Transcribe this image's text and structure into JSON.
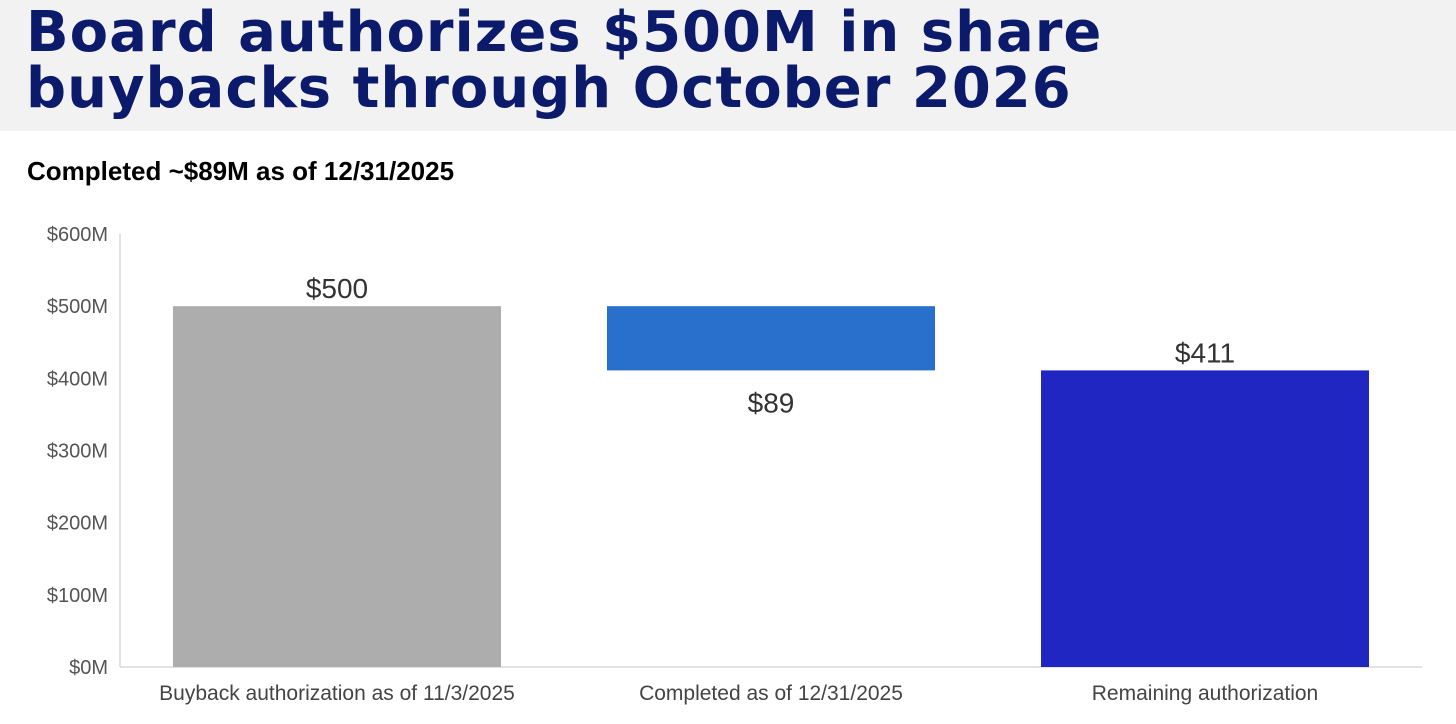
{
  "title": {
    "line1": "Board authorizes $500M in share",
    "line2": "buybacks through October 2026"
  },
  "colors": {
    "title": "#0c1a6b",
    "header_band": "#f2f2f2",
    "axis": "#d9d9d9"
  },
  "chart_data": {
    "type": "bar",
    "subtype": "waterfall",
    "title": "Completed ~$89M as of 12/31/2025",
    "xlabel": "",
    "ylabel": "",
    "ylim": [
      0,
      600
    ],
    "y_ticks": [
      0,
      100,
      200,
      300,
      400,
      500,
      600
    ],
    "y_tick_labels": [
      "$0M",
      "$100M",
      "$200M",
      "$300M",
      "$400M",
      "$500M",
      "$600M"
    ],
    "grid": false,
    "legend": "none",
    "categories": [
      "Buyback authorization as of 11/3/2025",
      "Completed as of 12/31/2025",
      "Remaining authorization"
    ],
    "bars": [
      {
        "base": 0,
        "top": 500,
        "value": 500,
        "label": "$500",
        "label_position": "above",
        "color": "#adadad"
      },
      {
        "base": 411,
        "top": 500,
        "value": 89,
        "label": "$89",
        "label_position": "below",
        "color": "#2970cc"
      },
      {
        "base": 0,
        "top": 411,
        "value": 411,
        "label": "$411",
        "label_position": "above",
        "color": "#2026c2"
      }
    ]
  }
}
